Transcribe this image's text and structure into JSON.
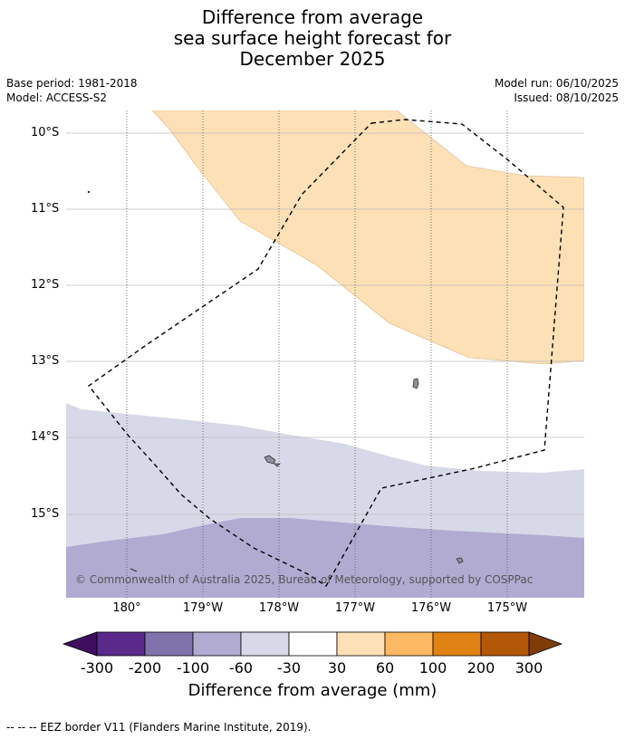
{
  "title": {
    "line1": "Difference from average",
    "line2": "sea surface height forecast for",
    "line3": "December 2025"
  },
  "meta": {
    "base_period": "Base period: 1981-2018",
    "model": "Model: ACCESS-S2",
    "model_run": "Model run: 06/10/2025",
    "issued": "Issued: 08/10/2025"
  },
  "map": {
    "lat_labels": [
      "10°S",
      "11°S",
      "12°S",
      "13°S",
      "14°S",
      "15°S"
    ],
    "lon_labels": [
      "180°",
      "179°W",
      "178°W",
      "177°W",
      "176°W",
      "175°W"
    ],
    "copyright": "© Commonwealth of Australia 2025, Bureau of Meteorology, supported by COSPPac",
    "colors": {
      "band_30_60": "#fde0b6",
      "band_m60_m30": "#d8d9e8",
      "band_m100_m60": "#b1abd2",
      "land": "#8f8f9f",
      "grid": "#bbbbbb",
      "eez": "#000000"
    }
  },
  "colorbar": {
    "ticks": [
      "-300",
      "-200",
      "-100",
      "-60",
      "-30",
      "30",
      "60",
      "100",
      "200",
      "300"
    ],
    "colors": [
      "#5a2a8a",
      "#8073ab",
      "#b1abd2",
      "#d8d9e8",
      "#ffffff",
      "#fde0b6",
      "#fdb863",
      "#e08214",
      "#b35806"
    ],
    "extend_low_color": "#3f0f5e",
    "extend_high_color": "#7f3b08",
    "label": "Difference from average (mm)"
  },
  "footer": {
    "eez_note": "--  --  -- EEZ border V11 (Flanders Marine Institute, 2019)."
  }
}
